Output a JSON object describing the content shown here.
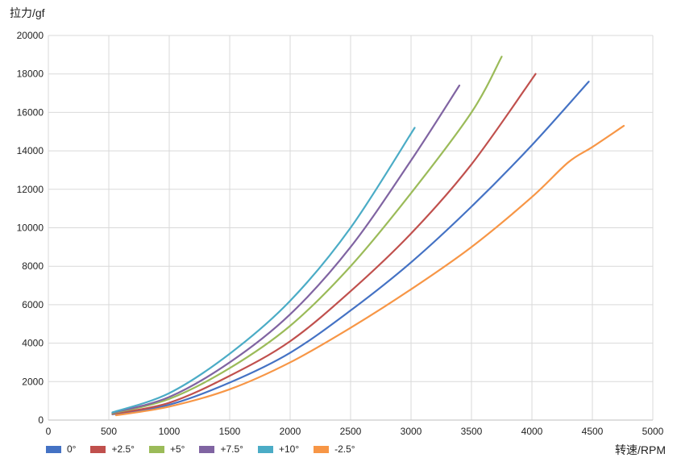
{
  "chart_data": {
    "type": "line",
    "ylabel": "拉力/gf",
    "xlabel": "转速/RPM",
    "xlim": [
      0,
      5000
    ],
    "ylim": [
      0,
      20000
    ],
    "x_ticks": [
      "0",
      "500",
      "1000",
      "1500",
      "2000",
      "2500",
      "3000",
      "3500",
      "4000",
      "4500",
      "5000"
    ],
    "y_ticks": [
      "0",
      "2000",
      "4000",
      "6000",
      "8000",
      "10000",
      "12000",
      "14000",
      "16000",
      "18000",
      "20000"
    ],
    "grid": true,
    "legend_position": "bottom-left",
    "series": [
      {
        "name": "0°",
        "color": "#4472C4",
        "x": [
          530,
          1000,
          1500,
          2000,
          2500,
          3000,
          3500,
          4000,
          4470
        ],
        "y": [
          300,
          800,
          1950,
          3500,
          5700,
          8200,
          11100,
          14300,
          17600
        ]
      },
      {
        "name": "+2.5°",
        "color": "#C0504D",
        "x": [
          530,
          1000,
          1500,
          2000,
          2500,
          3000,
          3500,
          4030
        ],
        "y": [
          320,
          900,
          2300,
          4100,
          6700,
          9700,
          13300,
          18000
        ]
      },
      {
        "name": "+5°",
        "color": "#9BBB59",
        "x": [
          530,
          1000,
          1500,
          2000,
          2500,
          3000,
          3500,
          3750
        ],
        "y": [
          350,
          1100,
          2700,
          4900,
          8000,
          11800,
          16000,
          18900
        ]
      },
      {
        "name": "+7.5°",
        "color": "#8064A2",
        "x": [
          530,
          1000,
          1500,
          2000,
          2500,
          3000,
          3400
        ],
        "y": [
          380,
          1200,
          3000,
          5500,
          9000,
          13500,
          17400
        ]
      },
      {
        "name": "+10°",
        "color": "#4BACC6",
        "x": [
          530,
          1000,
          1500,
          2000,
          2500,
          3030
        ],
        "y": [
          400,
          1400,
          3450,
          6200,
          10000,
          15200
        ]
      },
      {
        "name": "-2.5°",
        "color": "#F79646",
        "x": [
          560,
          1000,
          1500,
          2000,
          2500,
          3000,
          3500,
          4000,
          4300,
          4500,
          4760
        ],
        "y": [
          250,
          700,
          1600,
          3000,
          4800,
          6800,
          9000,
          11600,
          13400,
          14200,
          15300
        ]
      }
    ]
  }
}
